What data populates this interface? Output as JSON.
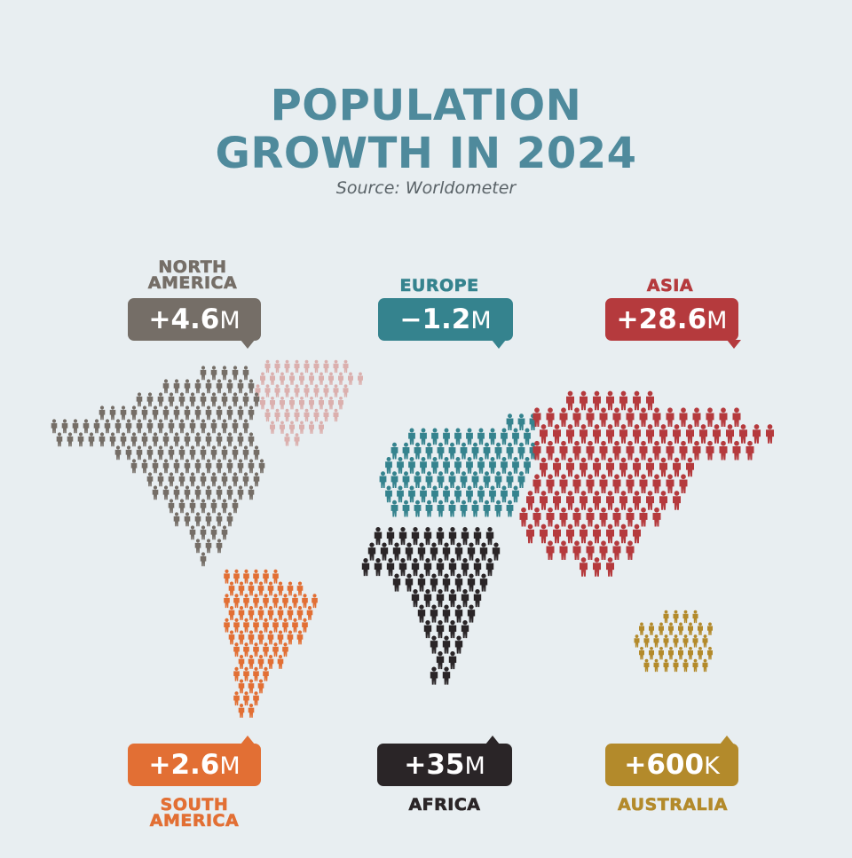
{
  "title": "POPULATION GROWTH IN 2024",
  "source": "Source: Worldometer",
  "regions": [
    {
      "id": "north-america",
      "name": "NORTH\nAMERICA",
      "sign": "+",
      "value": "4.6",
      "unit": "M",
      "color": "#756e67"
    },
    {
      "id": "europe",
      "name": "EUROPE",
      "sign": "−",
      "value": "1.2",
      "unit": "M",
      "color": "#35838e"
    },
    {
      "id": "asia",
      "name": "ASIA",
      "sign": "+",
      "value": "28.6",
      "unit": "M",
      "color": "#b53a3d"
    },
    {
      "id": "south-america",
      "name": "SOUTH\nAMERICA",
      "sign": "+",
      "value": "2.6",
      "unit": "M",
      "color": "#e26f34"
    },
    {
      "id": "africa",
      "name": "AFRICA",
      "sign": "+",
      "value": "35",
      "unit": "M",
      "color": "#2a2527"
    },
    {
      "id": "australia",
      "name": "AUSTRALIA",
      "sign": "+",
      "value": "600",
      "unit": "K",
      "color": "#b38a2b"
    }
  ],
  "greenland_color": "#dbb0ae"
}
